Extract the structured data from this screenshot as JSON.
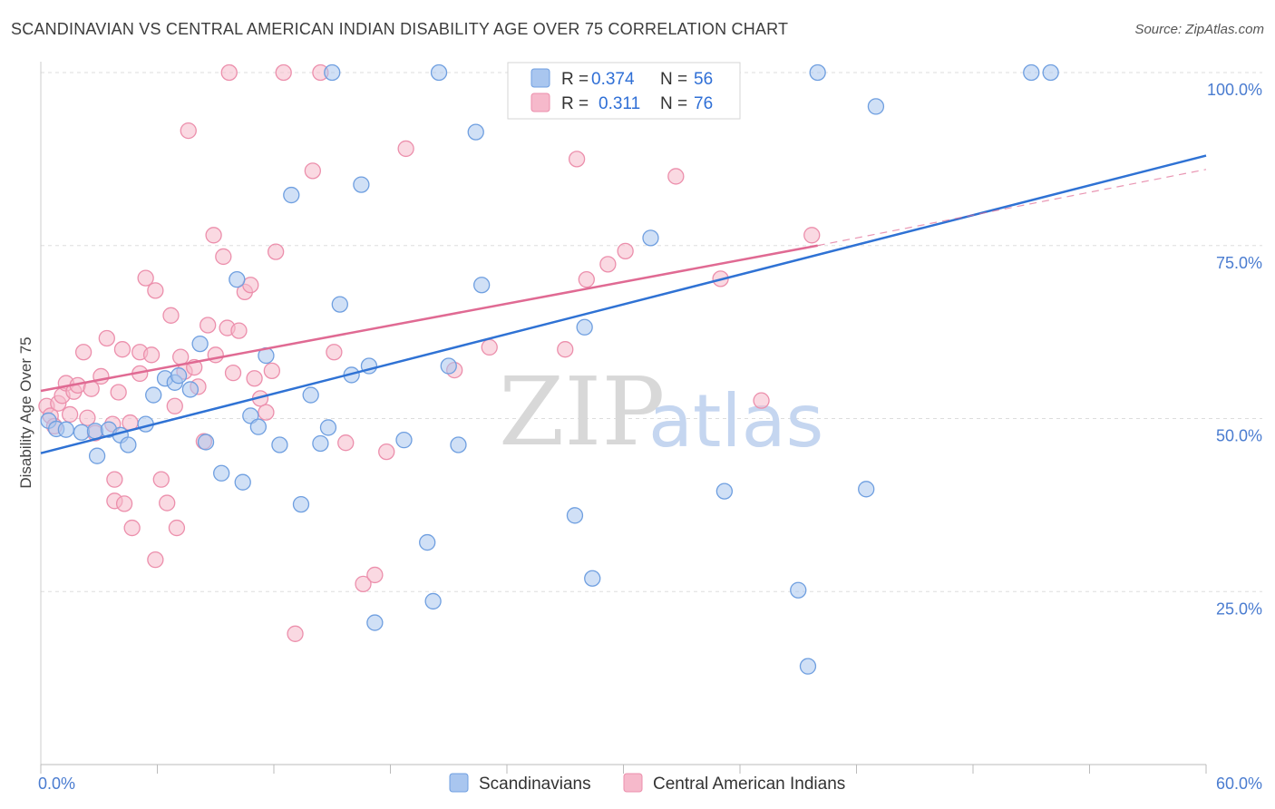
{
  "title": "SCANDINAVIAN VS CENTRAL AMERICAN INDIAN DISABILITY AGE OVER 75 CORRELATION CHART",
  "source": "Source: ZipAtlas.com",
  "watermark": {
    "zip": "ZIP",
    "atlas": "atlas"
  },
  "colors": {
    "blue_fill": "#a9c6ef",
    "blue_stroke": "#6f9fe0",
    "blue_line": "#2f72d4",
    "pink_fill": "#f6b9cb",
    "pink_stroke": "#ec8fac",
    "pink_line": "#e06a93",
    "grid": "#dddddd",
    "axis_text": "#4a7cd0"
  },
  "legend": {
    "rows": [
      {
        "r_label": "R =",
        "r_value": "0.374",
        "n_label": "N =",
        "n_value": "56"
      },
      {
        "r_label": "R =",
        "r_value": "0.311",
        "n_label": "N =",
        "n_value": "76"
      }
    ]
  },
  "chart_data": {
    "type": "scatter",
    "title": "SCANDINAVIAN VS CENTRAL AMERICAN INDIAN DISABILITY AGE OVER 75 CORRELATION CHART",
    "xlabel": "",
    "ylabel": "Disability Age Over 75",
    "xlim": [
      0,
      60
    ],
    "ylim": [
      0,
      100
    ],
    "x_tick_labels": [
      "0.0%",
      "60.0%"
    ],
    "y_ticks": [
      25,
      50,
      75,
      100
    ],
    "y_tick_labels": [
      "25.0%",
      "50.0%",
      "75.0%",
      "100.0%"
    ],
    "grid": true,
    "legend_position": "top-center",
    "series": [
      {
        "name": "Scandinavians",
        "r": 0.374,
        "n": 56,
        "trend": {
          "x": [
            0,
            60
          ],
          "y": [
            45,
            88
          ]
        },
        "points": [
          [
            0.4,
            49.7
          ],
          [
            0.8,
            48.5
          ],
          [
            1.3,
            48.4
          ],
          [
            2.1,
            48
          ],
          [
            2.8,
            48.2
          ],
          [
            3.5,
            48.4
          ],
          [
            4.1,
            47.6
          ],
          [
            4.5,
            46.2
          ],
          [
            2.9,
            44.6
          ],
          [
            5.4,
            49.2
          ],
          [
            5.8,
            53.4
          ],
          [
            6.4,
            55.8
          ],
          [
            6.9,
            55.2
          ],
          [
            7.1,
            56.2
          ],
          [
            7.7,
            54.2
          ],
          [
            8.2,
            60.8
          ],
          [
            8.5,
            46.6
          ],
          [
            9.3,
            42.1
          ],
          [
            10.1,
            70.1
          ],
          [
            10.4,
            40.8
          ],
          [
            10.8,
            50.4
          ],
          [
            11.2,
            48.8
          ],
          [
            11.6,
            59.1
          ],
          [
            12.3,
            46.2
          ],
          [
            12.9,
            82.3
          ],
          [
            13.4,
            37.6
          ],
          [
            13.9,
            53.4
          ],
          [
            14.4,
            46.4
          ],
          [
            14.8,
            48.7
          ],
          [
            15.4,
            66.5
          ],
          [
            16.0,
            56.3
          ],
          [
            16.5,
            83.8
          ],
          [
            16.9,
            57.6
          ],
          [
            17.2,
            20.5
          ],
          [
            18.7,
            46.9
          ],
          [
            19.9,
            32.1
          ],
          [
            20.2,
            23.6
          ],
          [
            21.0,
            57.6
          ],
          [
            21.5,
            46.2
          ],
          [
            22.4,
            91.4
          ],
          [
            22.7,
            69.3
          ],
          [
            28.4,
            26.9
          ],
          [
            27.5,
            36.0
          ],
          [
            28.0,
            63.2
          ],
          [
            31.4,
            76.1
          ],
          [
            35.2,
            39.5
          ],
          [
            39.0,
            25.2
          ],
          [
            39.5,
            14.2
          ],
          [
            43.0,
            95.1
          ],
          [
            42.5,
            39.8
          ],
          [
            20.5,
            100
          ],
          [
            51.0,
            100
          ],
          [
            52.0,
            100
          ],
          [
            25.5,
            100
          ],
          [
            40.0,
            100
          ],
          [
            15.0,
            100
          ]
        ]
      },
      {
        "name": "Central American Indians",
        "r": 0.311,
        "n": 76,
        "trend": {
          "x": [
            0,
            40
          ],
          "y": [
            54,
            75
          ]
        },
        "trend_dashed": {
          "x": [
            40,
            60
          ],
          "y": [
            75,
            86
          ]
        },
        "points": [
          [
            0.3,
            51.8
          ],
          [
            0.5,
            50.4
          ],
          [
            0.7,
            48.9
          ],
          [
            0.9,
            52.2
          ],
          [
            1.1,
            53.3
          ],
          [
            1.3,
            55.1
          ],
          [
            1.5,
            50.6
          ],
          [
            1.7,
            53.9
          ],
          [
            1.9,
            54.8
          ],
          [
            2.2,
            59.6
          ],
          [
            2.4,
            50.1
          ],
          [
            2.6,
            54.3
          ],
          [
            2.8,
            47.9
          ],
          [
            3.1,
            56.1
          ],
          [
            3.4,
            61.6
          ],
          [
            3.7,
            49.2
          ],
          [
            4.0,
            53.8
          ],
          [
            4.2,
            60.0
          ],
          [
            3.8,
            41.2
          ],
          [
            3.8,
            38.1
          ],
          [
            4.3,
            37.7
          ],
          [
            4.6,
            49.4
          ],
          [
            5.1,
            56.5
          ],
          [
            5.1,
            59.6
          ],
          [
            5.4,
            70.3
          ],
          [
            5.7,
            59.2
          ],
          [
            5.9,
            68.5
          ],
          [
            6.2,
            41.2
          ],
          [
            6.5,
            37.8
          ],
          [
            6.7,
            64.9
          ],
          [
            5.9,
            29.6
          ],
          [
            6.9,
            51.8
          ],
          [
            7.2,
            58.9
          ],
          [
            7.4,
            56.8
          ],
          [
            7.6,
            91.6
          ],
          [
            7.9,
            57.4
          ],
          [
            8.1,
            54.6
          ],
          [
            8.4,
            46.7
          ],
          [
            8.6,
            63.5
          ],
          [
            8.9,
            76.5
          ],
          [
            9.0,
            59.2
          ],
          [
            9.4,
            73.4
          ],
          [
            9.6,
            63.1
          ],
          [
            9.9,
            56.6
          ],
          [
            10.2,
            62.7
          ],
          [
            10.5,
            68.3
          ],
          [
            10.8,
            69.3
          ],
          [
            11.0,
            55.8
          ],
          [
            11.3,
            52.9
          ],
          [
            11.6,
            50.9
          ],
          [
            11.9,
            56.9
          ],
          [
            12.1,
            74.1
          ],
          [
            12.5,
            100
          ],
          [
            13.1,
            18.9
          ],
          [
            14.0,
            85.8
          ],
          [
            15.1,
            59.6
          ],
          [
            15.7,
            46.5
          ],
          [
            16.6,
            26.1
          ],
          [
            17.2,
            27.4
          ],
          [
            17.8,
            45.2
          ],
          [
            18.8,
            89.0
          ],
          [
            21.3,
            57.0
          ],
          [
            23.1,
            60.3
          ],
          [
            27.0,
            60.0
          ],
          [
            27.6,
            87.5
          ],
          [
            28.1,
            70.1
          ],
          [
            29.2,
            72.3
          ],
          [
            30.1,
            74.2
          ],
          [
            32.7,
            85.0
          ],
          [
            35.0,
            70.2
          ],
          [
            37.1,
            52.6
          ],
          [
            39.7,
            76.5
          ],
          [
            9.7,
            100
          ],
          [
            14.4,
            100
          ],
          [
            7.0,
            34.2
          ],
          [
            4.7,
            34.2
          ]
        ]
      }
    ]
  },
  "bottom_legend": [
    {
      "label": "Scandinavians"
    },
    {
      "label": "Central American Indians"
    }
  ]
}
